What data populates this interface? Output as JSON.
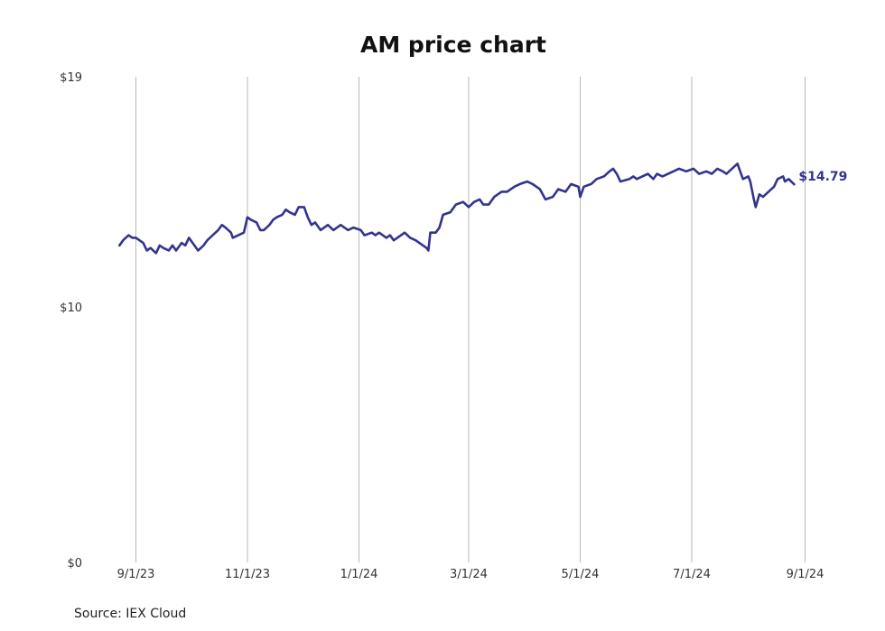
{
  "chart_data": {
    "type": "line",
    "title": "AM price chart",
    "source": "Source: IEX Cloud",
    "xlabel": "",
    "ylabel": "",
    "x_ticks": [
      "9/1/23",
      "11/1/23",
      "1/1/24",
      "3/1/24",
      "5/1/24",
      "7/1/24",
      "9/1/24"
    ],
    "x_range": [
      "2023-08-15",
      "2024-09-20"
    ],
    "y_ticks": [
      "$0",
      "$10",
      "$19"
    ],
    "ylim": [
      0,
      19
    ],
    "grid": "vertical",
    "line_color": "#33348e",
    "last_value_label": "$14.79",
    "series": [
      {
        "values": [
          [
            "2023-08-23",
            12.4
          ],
          [
            "2023-08-25",
            12.6
          ],
          [
            "2023-08-28",
            12.8
          ],
          [
            "2023-08-30",
            12.7
          ],
          [
            "2023-09-01",
            12.7
          ],
          [
            "2023-09-05",
            12.5
          ],
          [
            "2023-09-07",
            12.2
          ],
          [
            "2023-09-09",
            12.3
          ],
          [
            "2023-09-12",
            12.1
          ],
          [
            "2023-09-14",
            12.4
          ],
          [
            "2023-09-16",
            12.3
          ],
          [
            "2023-09-19",
            12.2
          ],
          [
            "2023-09-21",
            12.4
          ],
          [
            "2023-09-23",
            12.2
          ],
          [
            "2023-09-26",
            12.5
          ],
          [
            "2023-09-28",
            12.4
          ],
          [
            "2023-09-30",
            12.7
          ],
          [
            "2023-10-03",
            12.4
          ],
          [
            "2023-10-05",
            12.2
          ],
          [
            "2023-10-08",
            12.4
          ],
          [
            "2023-10-10",
            12.6
          ],
          [
            "2023-10-13",
            12.8
          ],
          [
            "2023-10-16",
            13.0
          ],
          [
            "2023-10-18",
            13.2
          ],
          [
            "2023-10-20",
            13.1
          ],
          [
            "2023-10-23",
            12.9
          ],
          [
            "2023-10-24",
            12.7
          ],
          [
            "2023-10-27",
            12.8
          ],
          [
            "2023-10-30",
            12.9
          ],
          [
            "2023-11-01",
            13.5
          ],
          [
            "2023-11-03",
            13.4
          ],
          [
            "2023-11-06",
            13.3
          ],
          [
            "2023-11-08",
            13.0
          ],
          [
            "2023-11-10",
            13.0
          ],
          [
            "2023-11-13",
            13.2
          ],
          [
            "2023-11-15",
            13.4
          ],
          [
            "2023-11-17",
            13.5
          ],
          [
            "2023-11-20",
            13.6
          ],
          [
            "2023-11-22",
            13.8
          ],
          [
            "2023-11-24",
            13.7
          ],
          [
            "2023-11-27",
            13.6
          ],
          [
            "2023-11-29",
            13.9
          ],
          [
            "2023-12-02",
            13.9
          ],
          [
            "2023-12-04",
            13.5
          ],
          [
            "2023-12-06",
            13.2
          ],
          [
            "2023-12-08",
            13.3
          ],
          [
            "2023-12-11",
            13.0
          ],
          [
            "2023-12-13",
            13.1
          ],
          [
            "2023-12-15",
            13.2
          ],
          [
            "2023-12-18",
            13.0
          ],
          [
            "2023-12-20",
            13.1
          ],
          [
            "2023-12-22",
            13.2
          ],
          [
            "2023-12-26",
            13.0
          ],
          [
            "2023-12-29",
            13.1
          ],
          [
            "2024-01-02",
            13.0
          ],
          [
            "2024-01-04",
            12.8
          ],
          [
            "2024-01-08",
            12.9
          ],
          [
            "2024-01-10",
            12.8
          ],
          [
            "2024-01-12",
            12.9
          ],
          [
            "2024-01-16",
            12.7
          ],
          [
            "2024-01-18",
            12.8
          ],
          [
            "2024-01-20",
            12.6
          ],
          [
            "2024-01-24",
            12.8
          ],
          [
            "2024-01-26",
            12.9
          ],
          [
            "2024-01-29",
            12.7
          ],
          [
            "2024-02-01",
            12.6
          ],
          [
            "2024-02-05",
            12.4
          ],
          [
            "2024-02-07",
            12.3
          ],
          [
            "2024-02-08",
            12.2
          ],
          [
            "2024-02-09",
            12.9
          ],
          [
            "2024-02-12",
            12.9
          ],
          [
            "2024-02-14",
            13.1
          ],
          [
            "2024-02-16",
            13.6
          ],
          [
            "2024-02-20",
            13.7
          ],
          [
            "2024-02-23",
            14.0
          ],
          [
            "2024-02-27",
            14.1
          ],
          [
            "2024-03-01",
            13.9
          ],
          [
            "2024-03-04",
            14.1
          ],
          [
            "2024-03-07",
            14.2
          ],
          [
            "2024-03-09",
            14.0
          ],
          [
            "2024-03-12",
            14.0
          ],
          [
            "2024-03-15",
            14.3
          ],
          [
            "2024-03-19",
            14.5
          ],
          [
            "2024-03-22",
            14.5
          ],
          [
            "2024-03-26",
            14.7
          ],
          [
            "2024-03-29",
            14.8
          ],
          [
            "2024-04-02",
            14.9
          ],
          [
            "2024-04-05",
            14.8
          ],
          [
            "2024-04-09",
            14.6
          ],
          [
            "2024-04-12",
            14.2
          ],
          [
            "2024-04-16",
            14.3
          ],
          [
            "2024-04-19",
            14.6
          ],
          [
            "2024-04-23",
            14.5
          ],
          [
            "2024-04-26",
            14.8
          ],
          [
            "2024-04-30",
            14.7
          ],
          [
            "2024-05-01",
            14.3
          ],
          [
            "2024-05-03",
            14.7
          ],
          [
            "2024-05-07",
            14.8
          ],
          [
            "2024-05-10",
            15.0
          ],
          [
            "2024-05-14",
            15.1
          ],
          [
            "2024-05-17",
            15.3
          ],
          [
            "2024-05-19",
            15.4
          ],
          [
            "2024-05-21",
            15.2
          ],
          [
            "2024-05-23",
            14.9
          ],
          [
            "2024-05-28",
            15.0
          ],
          [
            "2024-05-30",
            15.1
          ],
          [
            "2024-06-01",
            15.0
          ],
          [
            "2024-06-04",
            15.1
          ],
          [
            "2024-06-07",
            15.2
          ],
          [
            "2024-06-10",
            15.0
          ],
          [
            "2024-06-12",
            15.2
          ],
          [
            "2024-06-15",
            15.1
          ],
          [
            "2024-06-18",
            15.2
          ],
          [
            "2024-06-21",
            15.3
          ],
          [
            "2024-06-24",
            15.4
          ],
          [
            "2024-06-28",
            15.3
          ],
          [
            "2024-07-02",
            15.4
          ],
          [
            "2024-07-05",
            15.2
          ],
          [
            "2024-07-09",
            15.3
          ],
          [
            "2024-07-12",
            15.2
          ],
          [
            "2024-07-15",
            15.4
          ],
          [
            "2024-07-18",
            15.3
          ],
          [
            "2024-07-20",
            15.2
          ],
          [
            "2024-07-23",
            15.4
          ],
          [
            "2024-07-26",
            15.6
          ],
          [
            "2024-07-29",
            15.0
          ],
          [
            "2024-08-01",
            15.1
          ],
          [
            "2024-08-02",
            14.9
          ],
          [
            "2024-08-04",
            14.2
          ],
          [
            "2024-08-05",
            13.9
          ],
          [
            "2024-08-07",
            14.4
          ],
          [
            "2024-08-09",
            14.3
          ],
          [
            "2024-08-12",
            14.5
          ],
          [
            "2024-08-15",
            14.7
          ],
          [
            "2024-08-17",
            15.0
          ],
          [
            "2024-08-20",
            15.1
          ],
          [
            "2024-08-21",
            14.9
          ],
          [
            "2024-08-23",
            15.0
          ],
          [
            "2024-08-26",
            14.79
          ]
        ]
      }
    ]
  }
}
